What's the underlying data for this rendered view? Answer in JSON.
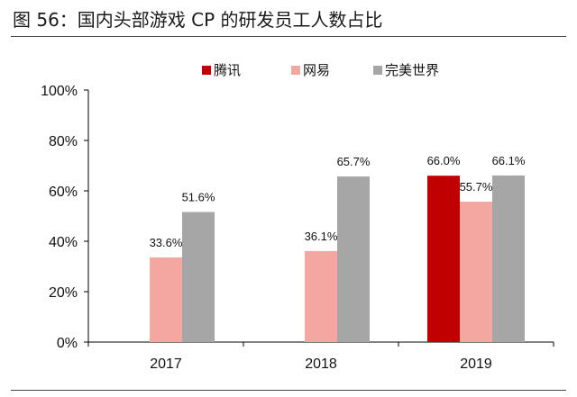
{
  "figure": {
    "title": "图 56：国内头部游戏 CP 的研发员工人数占比"
  },
  "chart_data": {
    "type": "bar",
    "categories": [
      "2017",
      "2018",
      "2019"
    ],
    "series": [
      {
        "name": "腾讯",
        "color": "#c00000",
        "values": [
          null,
          null,
          66.0
        ],
        "labels": [
          "",
          "",
          "66.0%"
        ]
      },
      {
        "name": "网易",
        "color": "#f4a6a0",
        "values": [
          33.6,
          36.1,
          55.7
        ],
        "labels": [
          "33.6%",
          "36.1%",
          "55.7%"
        ]
      },
      {
        "name": "完美世界",
        "color": "#a6a6a6",
        "values": [
          51.6,
          65.7,
          66.1
        ],
        "labels": [
          "51.6%",
          "65.7%",
          "66.1%"
        ]
      }
    ],
    "ylim": [
      0,
      100
    ],
    "yticks": [
      0,
      20,
      40,
      60,
      80,
      100
    ],
    "ytick_labels": [
      "0%",
      "20%",
      "40%",
      "60%",
      "80%",
      "100%"
    ],
    "legend_position": "top",
    "grid": false
  }
}
